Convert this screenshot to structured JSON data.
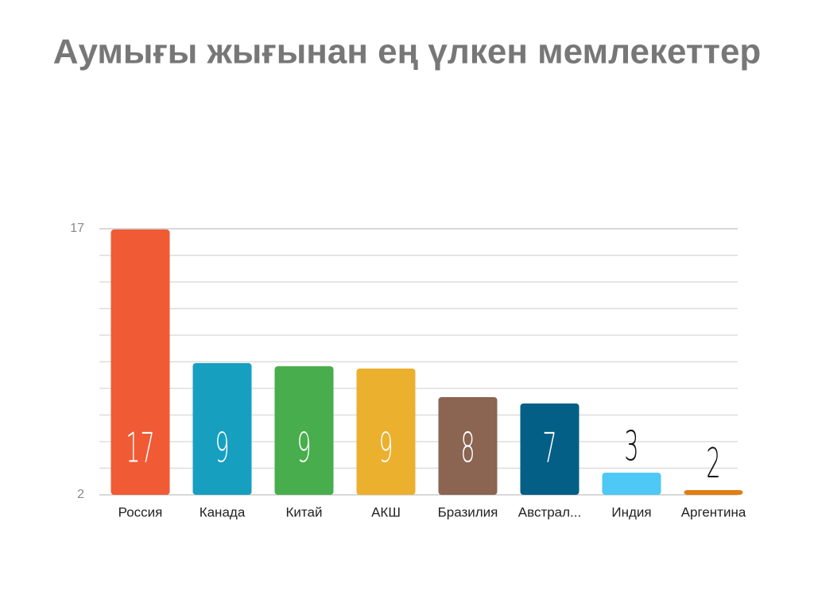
{
  "chart_data": {
    "type": "bar",
    "title": "Аумығы жығынан ең үлкен мемлекеттер",
    "categories": [
      "Россия",
      "Канада",
      "Китай",
      "АКШ",
      "Бразилия",
      "Австрал...",
      "Индия",
      "Аргентина"
    ],
    "values": [
      16.96,
      9.43,
      9.25,
      9.12,
      7.51,
      7.15,
      3.25,
      2.27
    ],
    "value_labels": [
      "17",
      "9",
      "9",
      "9",
      "8",
      "7",
      "3",
      "2"
    ],
    "colors": [
      "#f05a35",
      "#179fc0",
      "#48ad4c",
      "#ebb02e",
      "#8b6452",
      "#035f86",
      "#4ec8f4",
      "#e07f16"
    ],
    "ylim": [
      2,
      17
    ],
    "yticks": [
      2,
      17
    ],
    "minor_yticks": [
      3.5,
      5,
      6.5,
      8,
      9.5,
      11,
      12.5,
      14,
      15.5
    ],
    "grid": true
  }
}
